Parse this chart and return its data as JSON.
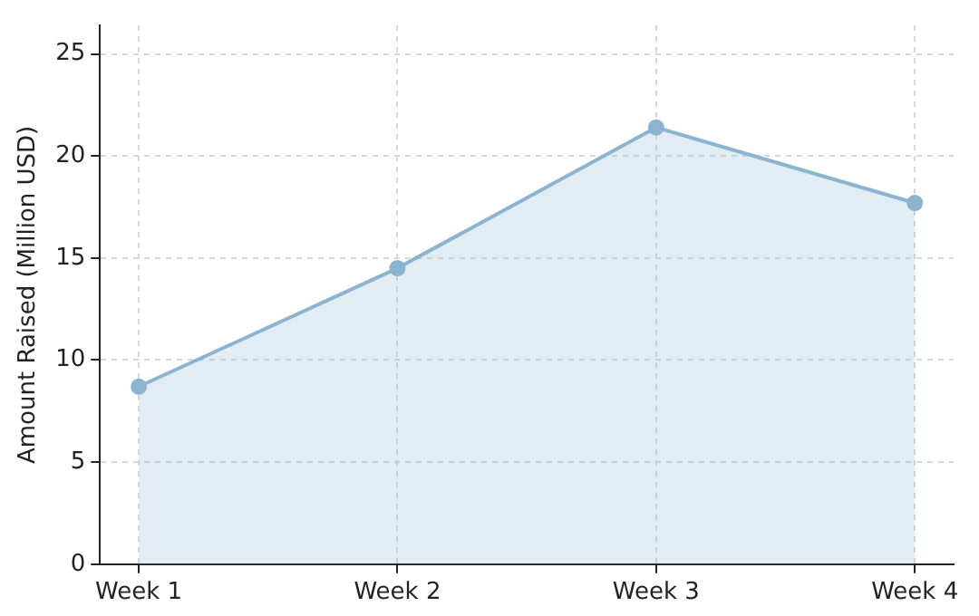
{
  "chart_data": {
    "type": "area",
    "ylabel": "Amount Raised (Million USD)",
    "categories": [
      "Week 1",
      "Week 2",
      "Week 3",
      "Week 4"
    ],
    "series": [
      {
        "color": "#8ab4d0",
        "values": [
          8.7,
          14.5,
          21.4,
          17.7
        ]
      }
    ],
    "ylim": [
      0,
      26.4
    ],
    "yticks": [
      0,
      5,
      10,
      15,
      20,
      25
    ],
    "grid": true,
    "legend": false,
    "marker": "circle",
    "line_style": "solid"
  }
}
